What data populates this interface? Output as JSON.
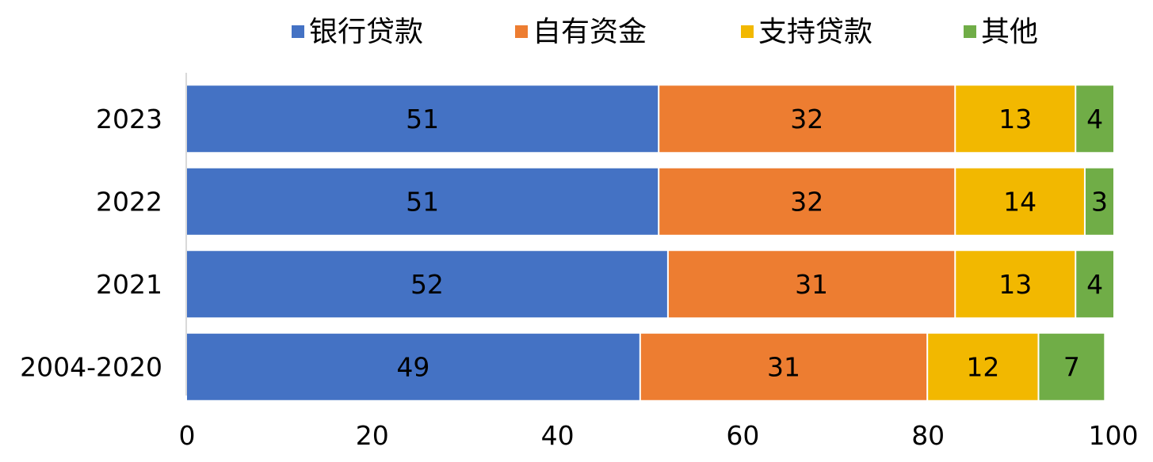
{
  "chart_data": {
    "type": "bar",
    "orientation": "horizontal",
    "stacked": true,
    "categories": [
      "2023",
      "2022",
      "2021",
      "2004-2020"
    ],
    "series": [
      {
        "name": "银行贷款",
        "color": "#4472C4",
        "values": [
          51,
          51,
          52,
          49
        ]
      },
      {
        "name": "自有资金",
        "color": "#ED7D31",
        "values": [
          32,
          32,
          31,
          31
        ]
      },
      {
        "name": "支持贷款",
        "color": "#F2B800",
        "values": [
          13,
          14,
          13,
          12
        ]
      },
      {
        "name": "其他",
        "color": "#70AD47",
        "values": [
          4,
          3,
          4,
          7
        ]
      }
    ],
    "xlim": [
      0,
      100
    ],
    "xticks": [
      0,
      20,
      40,
      60,
      80,
      100
    ],
    "legend_position": "top",
    "grid": false,
    "title": "",
    "xlabel": "",
    "ylabel": ""
  }
}
